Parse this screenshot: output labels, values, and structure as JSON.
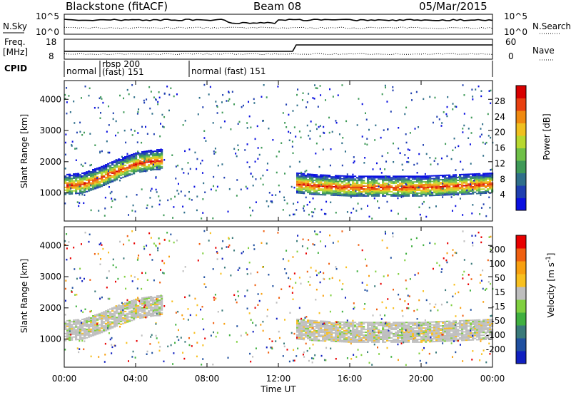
{
  "header": {
    "station": "Blackstone (fitACF)",
    "beam": "Beam 08",
    "date": "05/Mar/2015"
  },
  "top_panels": {
    "nsky_label": "N.Sky",
    "nsearch_label": "N.Search",
    "nsky_ticks": [
      "10^5",
      "10^0"
    ],
    "freq_label": "Freq.",
    "freq_unit": "[MHz]",
    "freq_ticks": [
      "18",
      "8"
    ],
    "nave_label": "Nave",
    "nave_ticks": [
      "60",
      "0"
    ],
    "cpid_label": "CPID",
    "cpid_segments": [
      {
        "start_h": 0,
        "end_h": 2,
        "label": "normal",
        "label2": ""
      },
      {
        "start_h": 2,
        "end_h": 7,
        "label": "rbsp 200",
        "label2": "(fast) 151"
      },
      {
        "start_h": 7,
        "end_h": 24,
        "label": "normal (fast) 151",
        "label2": ""
      }
    ]
  },
  "chart_data": [
    {
      "type": "heatmap",
      "parameter": "Power",
      "ylabel": "Slant Range [km]",
      "ylim": [
        100,
        4600
      ],
      "yticks": [
        1000,
        2000,
        3000,
        4000
      ],
      "colorbar_label": "Power [dB]",
      "colorbar_ticks": [
        "28",
        "24",
        "20",
        "16",
        "12",
        "8",
        "4"
      ],
      "colorbar_colors": [
        "#0a10e0",
        "#1f3fb0",
        "#2f6f8a",
        "#3f9a58",
        "#6fc048",
        "#b8d830",
        "#f0c020",
        "#f08a10",
        "#e84010",
        "#d80000"
      ],
      "structures": [
        {
          "name": "main_scatter_band_morning",
          "x_h": [
            0,
            1,
            2,
            3,
            4,
            5,
            5.5
          ],
          "y_km": [
            1200,
            1250,
            1450,
            1700,
            1900,
            2000,
            2000
          ],
          "power_db": 28
        },
        {
          "name": "main_scatter_band_afternoon",
          "x_h": [
            13,
            14,
            16,
            18,
            20,
            22,
            24
          ],
          "y_km": [
            1250,
            1200,
            1150,
            1150,
            1150,
            1200,
            1250
          ],
          "power_db": 28
        }
      ]
    },
    {
      "type": "heatmap",
      "parameter": "Velocity",
      "ylabel": "Slant Range [km]",
      "ylim": [
        100,
        4600
      ],
      "yticks": [
        1000,
        2000,
        3000,
        4000
      ],
      "colorbar_label": "Velocity [m s^-1]",
      "colorbar_ticks": [
        "200",
        "100",
        "50",
        "15",
        "-15",
        "-50",
        "-100",
        "-200"
      ],
      "colorbar_colors": [
        "#1020c0",
        "#2050a0",
        "#3a7a7a",
        "#40b040",
        "#80d040",
        "#bebebe",
        "#f8c020",
        "#f8a010",
        "#f06010",
        "#e80000"
      ]
    }
  ],
  "x_axis": {
    "label": "Time UT",
    "range_h": [
      0,
      24
    ],
    "ticks": [
      "00:00",
      "04:00",
      "08:00",
      "12:00",
      "16:00",
      "20:00",
      "00:00"
    ]
  }
}
